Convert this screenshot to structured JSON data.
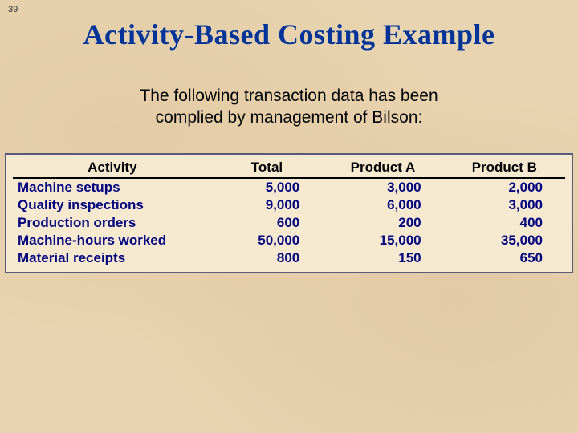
{
  "page_number": "39",
  "title": "Activity-Based Costing Example",
  "subtitle_line1": "The following transaction data has been",
  "subtitle_line2": "complied by management of Bilson:",
  "colors": {
    "title_color": "#003399",
    "body_text": "#000000",
    "table_text": "#000080",
    "table_border": "#5a5a7a",
    "header_underline": "#000000",
    "background": "#e8d4b0",
    "table_background": "#f5e9d0"
  },
  "typography": {
    "title_font": "Times New Roman",
    "title_size_pt": 27,
    "body_font": "Arial",
    "subtitle_size_pt": 16,
    "table_size_pt": 13
  },
  "table": {
    "type": "table",
    "columns": [
      "Activity",
      "Total",
      "Product A",
      "Product B"
    ],
    "column_align": [
      "left",
      "right",
      "right",
      "right"
    ],
    "rows": [
      [
        "Machine setups",
        "5,000",
        "3,000",
        "2,000"
      ],
      [
        "Quality inspections",
        "9,000",
        "6,000",
        "3,000"
      ],
      [
        "Production orders",
        "600",
        "200",
        "400"
      ],
      [
        "Machine-hours worked",
        "50,000",
        "15,000",
        "35,000"
      ],
      [
        "Material receipts",
        "800",
        "150",
        "650"
      ]
    ]
  }
}
